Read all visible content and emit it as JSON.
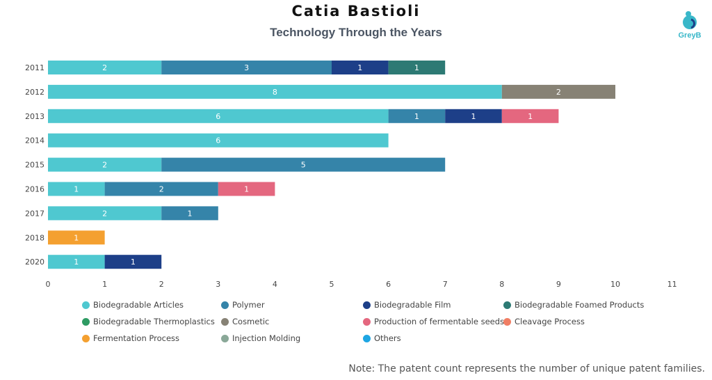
{
  "header": {
    "title": "Catia Bastioli",
    "subtitle": "Technology Through the Years",
    "logo_text": "GreyB"
  },
  "note": "Note: The patent count represents the number of unique patent families.",
  "chart_data": {
    "type": "bar",
    "orientation": "horizontal",
    "stacked": true,
    "categories": [
      "2011",
      "2012",
      "2013",
      "2014",
      "2015",
      "2016",
      "2017",
      "2018",
      "2020"
    ],
    "xlim": [
      0,
      11
    ],
    "x_ticks": [
      0,
      1,
      2,
      3,
      4,
      5,
      6,
      7,
      8,
      9,
      10,
      11
    ],
    "grid": false,
    "legend_position": "bottom",
    "series": [
      {
        "name": "Biodegradable Articles",
        "color": "#4fc8d0",
        "values": [
          2,
          8,
          6,
          6,
          2,
          1,
          2,
          0,
          1
        ]
      },
      {
        "name": "Polymer",
        "color": "#3584a9",
        "values": [
          3,
          0,
          1,
          0,
          5,
          2,
          1,
          0,
          0
        ]
      },
      {
        "name": "Biodegradable Film",
        "color": "#1d3f88",
        "values": [
          1,
          0,
          1,
          0,
          0,
          0,
          0,
          0,
          1
        ]
      },
      {
        "name": "Biodegradable Foamed Products",
        "color": "#2d7a74",
        "values": [
          1,
          0,
          0,
          0,
          0,
          0,
          0,
          0,
          0
        ]
      },
      {
        "name": "Biodegradable Thermoplastics",
        "color": "#2e9b63",
        "values": [
          0,
          0,
          0,
          0,
          0,
          0,
          0,
          0,
          0
        ]
      },
      {
        "name": "Cosmetic",
        "color": "#878275",
        "values": [
          0,
          2,
          0,
          0,
          0,
          0,
          0,
          0,
          0
        ]
      },
      {
        "name": "Production of fermentable seeds",
        "color": "#e4677f",
        "values": [
          0,
          0,
          1,
          0,
          0,
          1,
          0,
          0,
          0
        ]
      },
      {
        "name": "Cleavage Process",
        "color": "#f07e64",
        "values": [
          0,
          0,
          0,
          0,
          0,
          0,
          0,
          0,
          0
        ]
      },
      {
        "name": "Fermentation Process",
        "color": "#f4a030",
        "values": [
          0,
          0,
          0,
          0,
          0,
          0,
          0,
          1,
          0
        ]
      },
      {
        "name": "Injection Molding",
        "color": "#8aa898",
        "values": [
          0,
          0,
          0,
          0,
          0,
          0,
          0,
          0,
          0
        ]
      },
      {
        "name": "Others",
        "color": "#1ea6e3",
        "values": [
          0,
          0,
          0,
          0,
          0,
          0,
          0,
          0,
          0
        ]
      }
    ]
  }
}
